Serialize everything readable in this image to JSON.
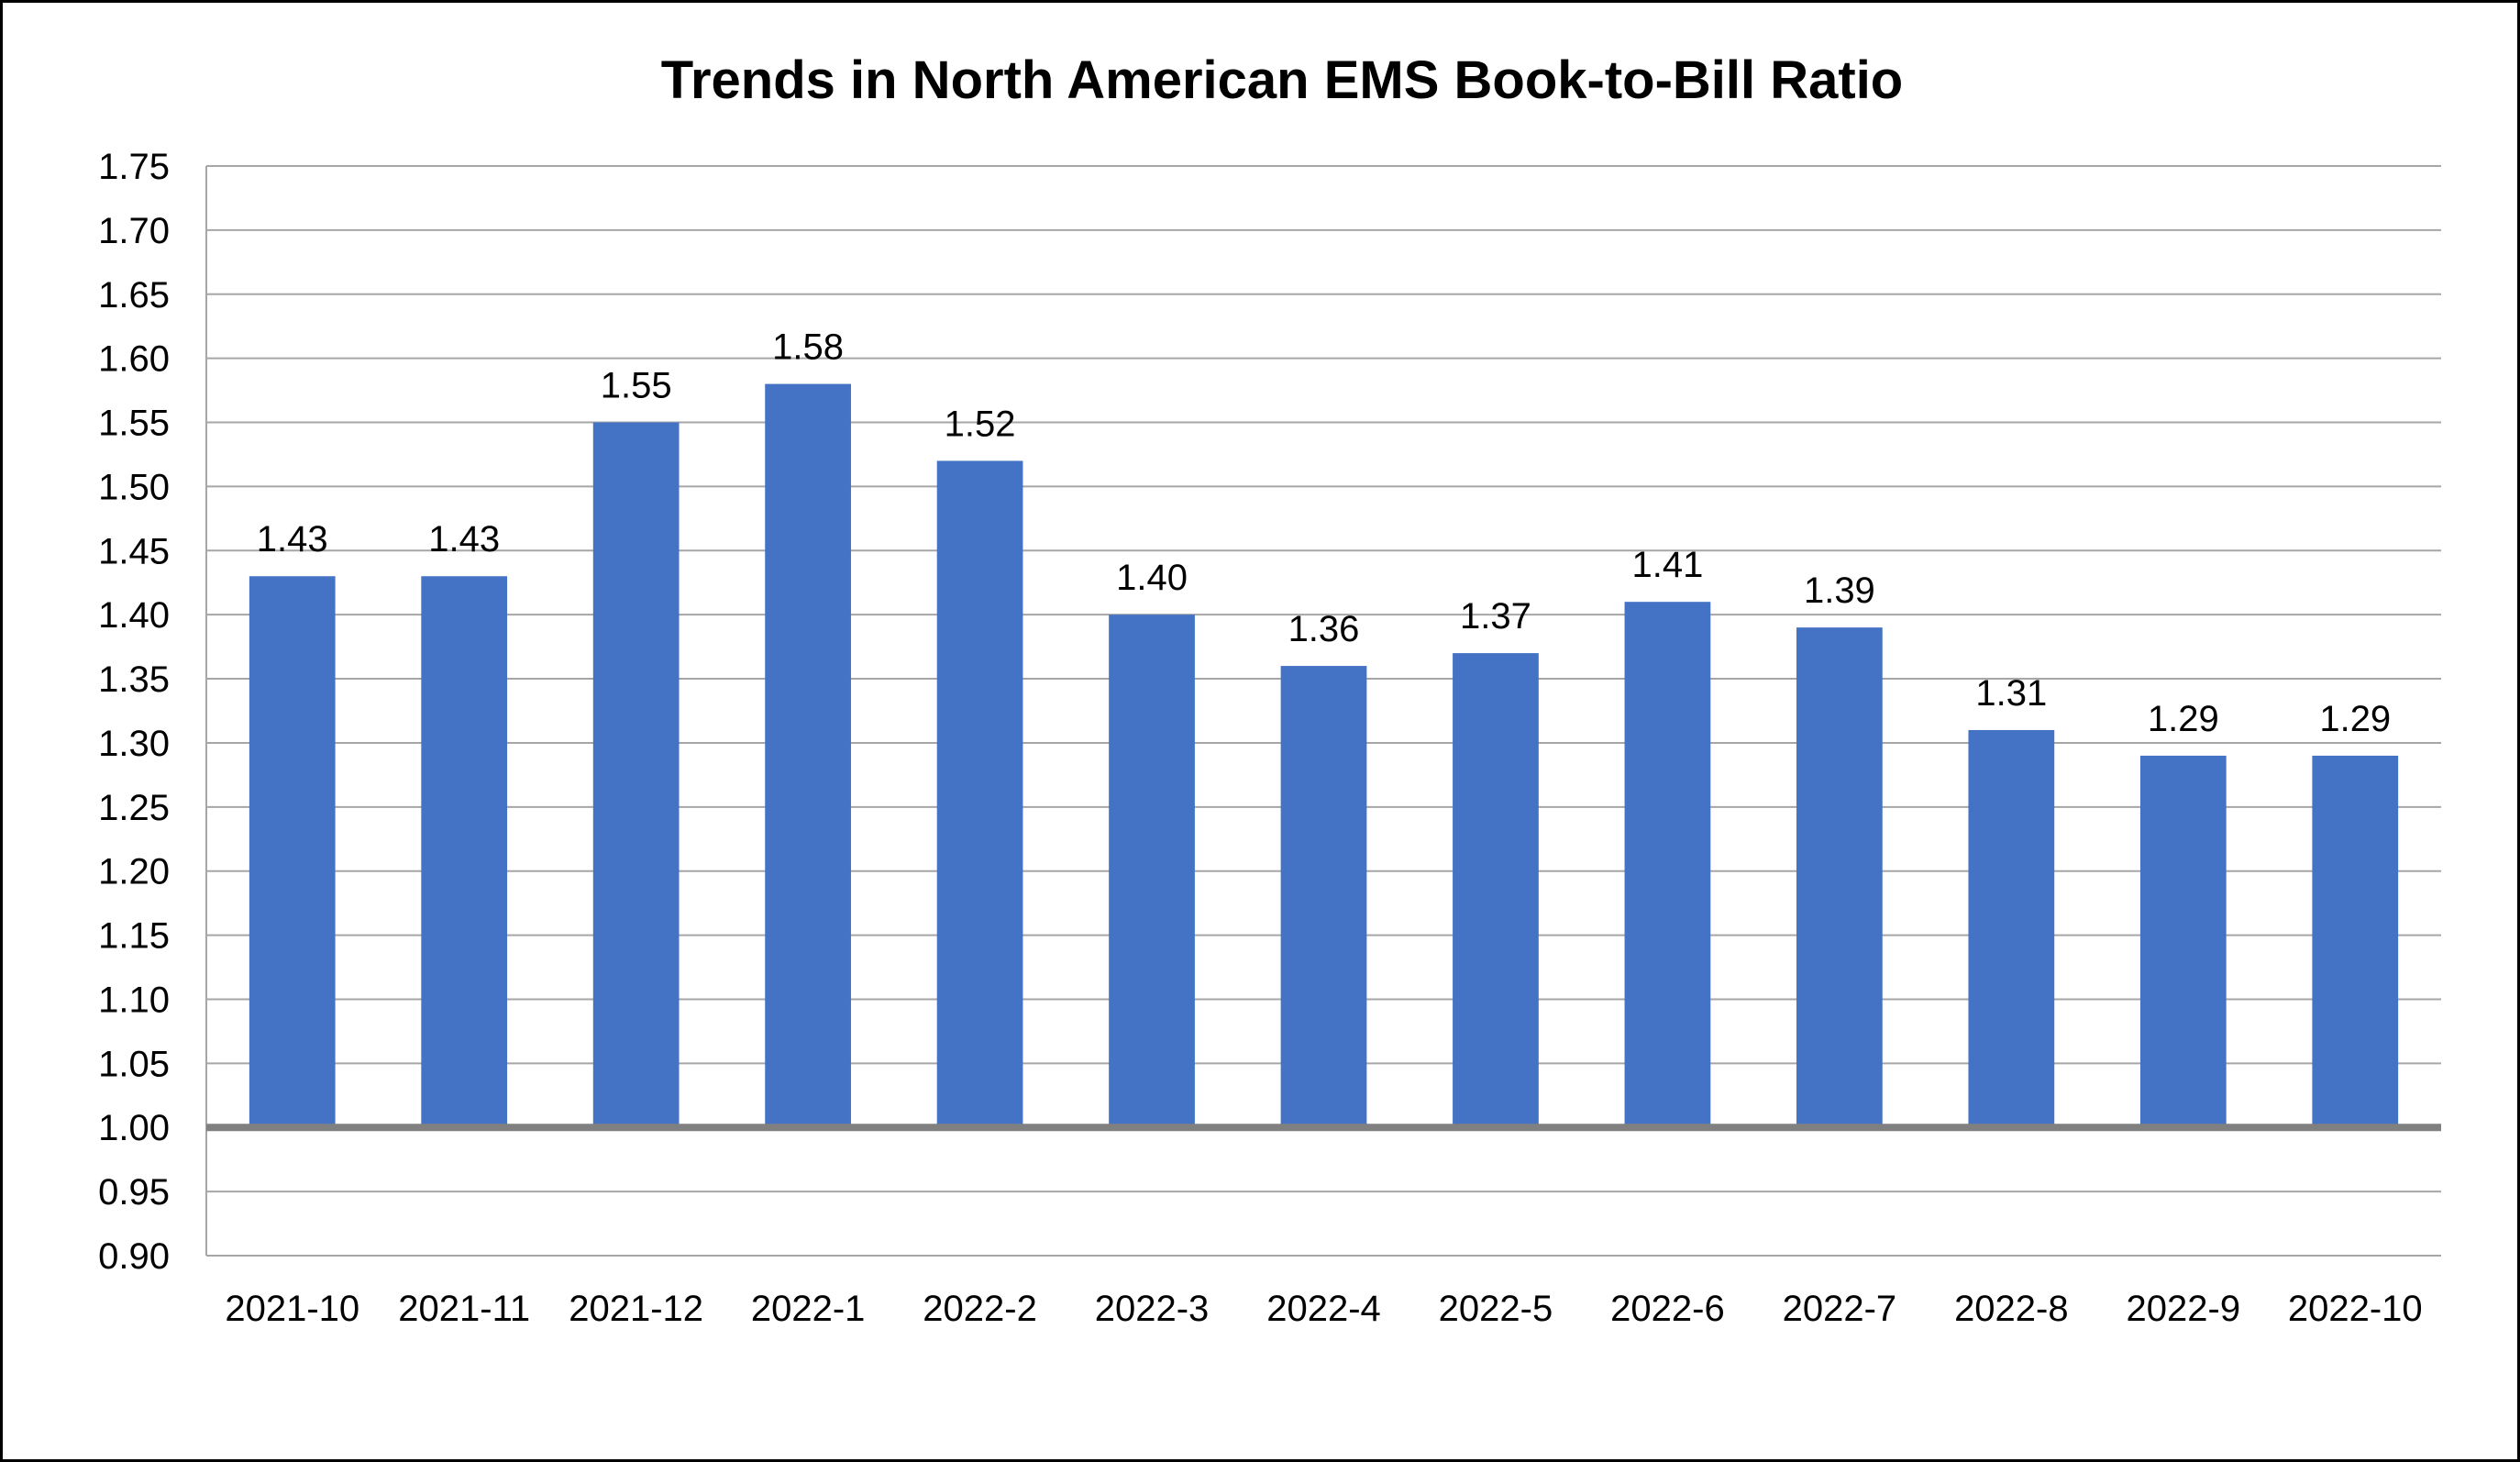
{
  "chart_data": {
    "type": "bar",
    "title": "Trends in North American EMS Book-to-Bill Ratio",
    "xlabel": "",
    "ylabel": "",
    "categories": [
      "2021-10",
      "2021-11",
      "2021-12",
      "2022-1",
      "2022-2",
      "2022-3",
      "2022-4",
      "2022-5",
      "2022-6",
      "2022-7",
      "2022-8",
      "2022-9",
      "2022-10"
    ],
    "values": [
      1.43,
      1.43,
      1.55,
      1.58,
      1.52,
      1.4,
      1.36,
      1.37,
      1.41,
      1.39,
      1.31,
      1.29,
      1.29
    ],
    "data_labels": [
      "1.43",
      "1.43",
      "1.55",
      "1.58",
      "1.52",
      "1.40",
      "1.36",
      "1.37",
      "1.41",
      "1.39",
      "1.31",
      "1.29",
      "1.29"
    ],
    "ylim": [
      0.9,
      1.75
    ],
    "bar_base": 1.0,
    "yticks": [
      "0.90",
      "0.95",
      "1.00",
      "1.05",
      "1.10",
      "1.15",
      "1.20",
      "1.25",
      "1.30",
      "1.35",
      "1.40",
      "1.45",
      "1.50",
      "1.55",
      "1.60",
      "1.65",
      "1.70",
      "1.75"
    ],
    "grid": true,
    "legend": "none",
    "colors": {
      "bar": "#4472C4",
      "grid": "#A6A6A6",
      "baseline": "#808080"
    }
  }
}
